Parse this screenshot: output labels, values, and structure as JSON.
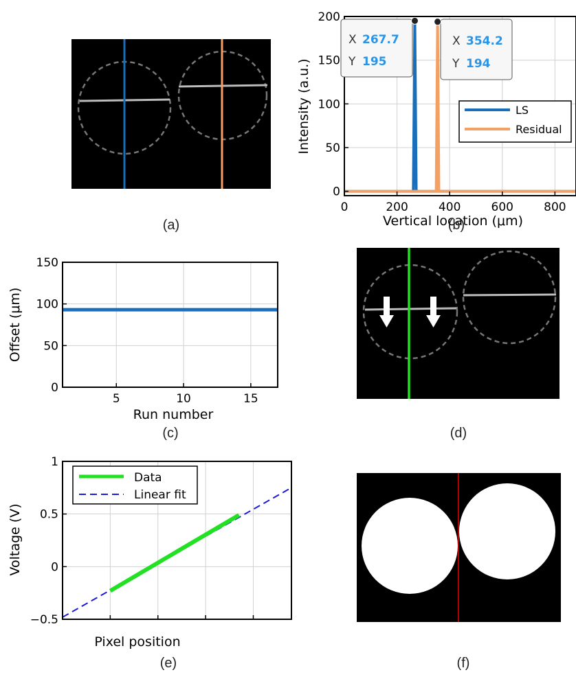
{
  "captions": {
    "a": "(a)",
    "b": "(b)",
    "c": "(c)",
    "d": "(d)",
    "e": "(e)",
    "f": "(f)"
  },
  "colors": {
    "ls": "#1a6fba",
    "residual": "#f4a062",
    "data_green": "#22e022",
    "fit_blue": "#1a1adf",
    "red_line": "#b00000"
  },
  "chart_data": [
    {
      "panel": "b",
      "type": "line",
      "xlabel": "Vertical location (μm)",
      "ylabel": "Intensity (a.u.)",
      "xlim": [
        0,
        880
      ],
      "ylim": [
        -5,
        200
      ],
      "xticks": [
        0,
        200,
        400,
        600,
        800
      ],
      "yticks": [
        0,
        50,
        100,
        150,
        200
      ],
      "grid": true,
      "legend_position": "bottom-right",
      "series": [
        {
          "name": "LS",
          "x": [
            0,
            262,
            267.7,
            273,
            880
          ],
          "y": [
            0,
            0,
            195,
            0,
            0
          ]
        },
        {
          "name": "Residual",
          "x": [
            0,
            349,
            354.2,
            359,
            880
          ],
          "y": [
            0,
            0,
            194,
            0,
            0
          ]
        }
      ],
      "datatips": [
        {
          "x_label": "X",
          "x": "267.7",
          "y_label": "Y",
          "y": "195"
        },
        {
          "x_label": "X",
          "x": "354.2",
          "y_label": "Y",
          "y": "194"
        }
      ]
    },
    {
      "panel": "c",
      "type": "line",
      "xlabel": "Run number",
      "ylabel": "Offset (μm)",
      "xlim": [
        1,
        17
      ],
      "ylim": [
        0,
        150
      ],
      "xticks": [
        5,
        10,
        15
      ],
      "yticks": [
        0,
        50,
        100,
        150
      ],
      "grid": true,
      "series": [
        {
          "x": [
            1,
            2,
            3,
            4,
            5,
            6,
            7,
            8,
            9,
            10,
            11,
            12,
            13,
            14,
            15,
            16,
            17
          ],
          "y": [
            93,
            93,
            93,
            93,
            93,
            93,
            93,
            93,
            93,
            93,
            93,
            93,
            93,
            93,
            93,
            93,
            93
          ]
        }
      ]
    },
    {
      "panel": "e",
      "type": "line",
      "xlabel": "Pixel position",
      "ylabel": "Voltage (V)",
      "xlim": [
        0,
        960
      ],
      "ylim": [
        -0.5,
        1
      ],
      "xticks": [
        0,
        200,
        400,
        600,
        800
      ],
      "yticks": [
        -0.5,
        0,
        0.5,
        1
      ],
      "ytick_labels": [
        "−0.5",
        "0",
        "0.5",
        "1"
      ],
      "grid": true,
      "legend_position": "top-left",
      "series": [
        {
          "name": "Data",
          "x": [
            200,
            740
          ],
          "y": [
            -0.23,
            0.49
          ]
        },
        {
          "name": "Linear fit",
          "x": [
            0,
            960
          ],
          "y": [
            -0.48,
            0.75
          ]
        }
      ]
    }
  ]
}
